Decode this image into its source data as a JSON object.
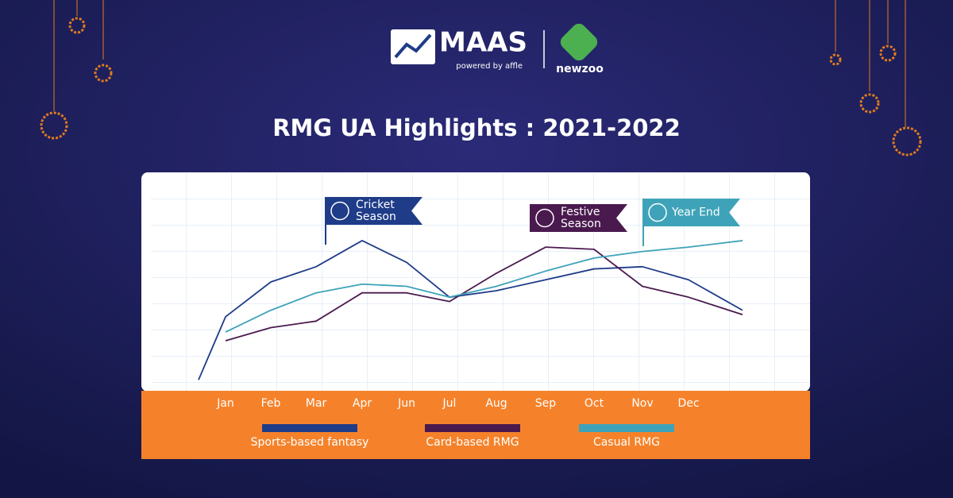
{
  "header": {
    "brand": "MAAS",
    "tagline": "powered by affle",
    "partner": "newzoo"
  },
  "chart_data": {
    "type": "line",
    "title": "RMG UA Highlights : 2021-2022",
    "categories": [
      null,
      "Jan",
      "Feb",
      "Mar",
      "Apr",
      "Jun",
      "Jul",
      "Aug",
      "Sep",
      "Oct",
      "Nov",
      "Dec",
      null
    ],
    "series": [
      {
        "name": "Sports-based fantasy",
        "color": "#1f3c88",
        "values": [
          5,
          34,
          50,
          57,
          69,
          59,
          43,
          46,
          51,
          56,
          57,
          51,
          37
        ]
      },
      {
        "name": "Card-based RMG",
        "color": "#4a1a4f",
        "values": [
          null,
          23,
          29,
          32,
          45,
          45,
          41,
          54,
          66,
          65,
          48,
          43,
          35
        ]
      },
      {
        "name": "Casual RMG",
        "color": "#3ea3b8",
        "values": [
          null,
          27,
          37,
          45,
          49,
          48,
          43,
          48,
          55,
          61,
          64,
          66,
          69
        ]
      }
    ],
    "ylim": [
      0,
      100
    ],
    "grid": true,
    "annotations": [
      "Cricket Season",
      "Festive Season",
      "Year End"
    ]
  }
}
